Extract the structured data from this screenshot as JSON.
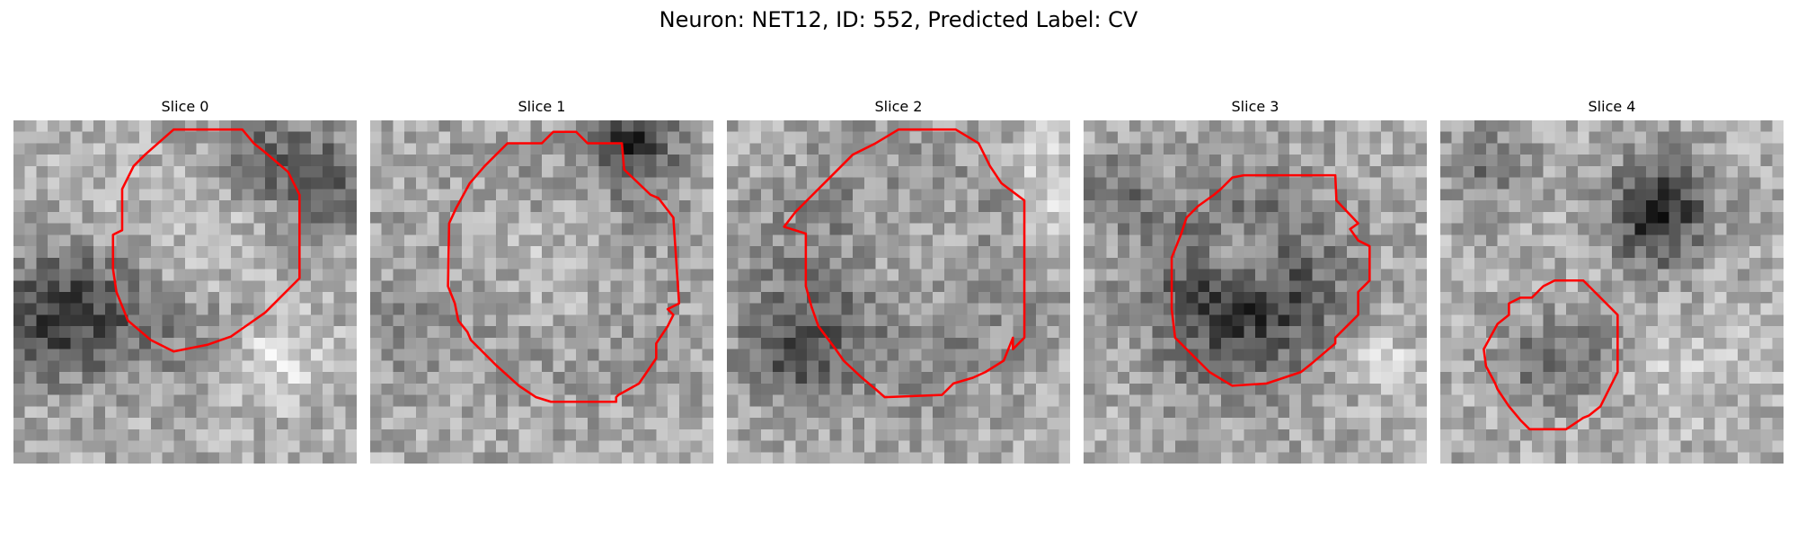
{
  "figure": {
    "title": "Neuron: NET12, ID: 552, Predicted Label: CV"
  },
  "contour_color": "#ff0000",
  "panels": [
    {
      "title": "Slice 0"
    },
    {
      "title": "Slice 1"
    },
    {
      "title": "Slice 2"
    },
    {
      "title": "Slice 3"
    },
    {
      "title": "Slice 4"
    }
  ]
}
